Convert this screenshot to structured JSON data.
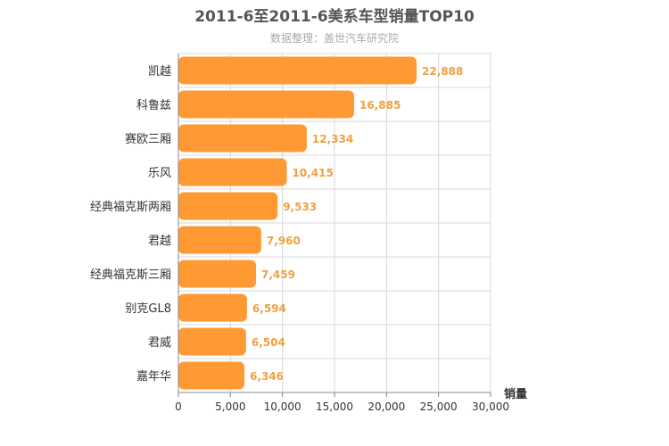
{
  "chart_data": {
    "type": "bar",
    "orientation": "horizontal",
    "title": "2011-6至2011-6美系车型销量TOP10",
    "subtitle": "数据整理：盖世汽车研究院",
    "xlabel": "销量",
    "categories": [
      "凯越",
      "科鲁兹",
      "赛欧三厢",
      "乐风",
      "经典福克斯两厢",
      "君越",
      "经典福克斯三厢",
      "别克GL8",
      "君威",
      "嘉年华"
    ],
    "values": [
      22888,
      16885,
      12334,
      10415,
      9533,
      7960,
      7459,
      6594,
      6504,
      6346
    ],
    "value_labels": [
      "22,888",
      "16,885",
      "12,334",
      "10,415",
      "9,533",
      "7,960",
      "7,459",
      "6,594",
      "6,504",
      "6,346"
    ],
    "xlim": [
      0,
      30000
    ],
    "ticks": [
      0,
      5000,
      10000,
      15000,
      20000,
      25000,
      30000
    ],
    "tick_labels": [
      "0",
      "5,000",
      "10,000",
      "15,000",
      "20,000",
      "25,000",
      "30,000"
    ],
    "grid": true,
    "bar_color": "#ff9933",
    "value_label_color": "#f0a040"
  }
}
